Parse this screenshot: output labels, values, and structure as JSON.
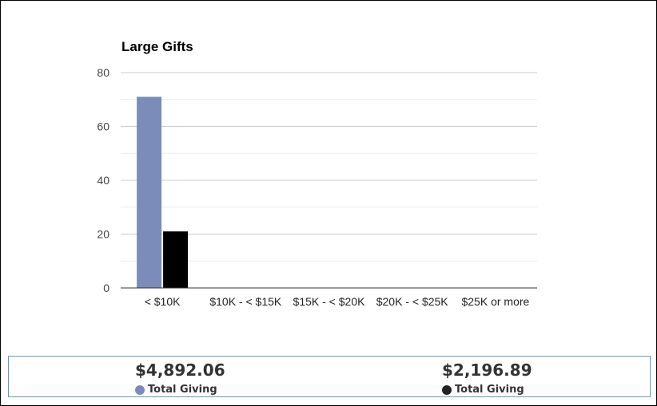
{
  "chart_data": {
    "type": "bar",
    "title": "Large Gifts",
    "categories": [
      "< $10K",
      "$10K - < $15K",
      "$15K - < $20K",
      "$20K - < $25K",
      "$25K or more"
    ],
    "series": [
      {
        "values": [
          71,
          0,
          0,
          0,
          0
        ],
        "color": "#7b8bba"
      },
      {
        "values": [
          21,
          0,
          0,
          0,
          0
        ],
        "color": "#000000"
      }
    ],
    "ylim": [
      0,
      80
    ],
    "y_ticks": [
      0,
      20,
      40,
      60,
      80
    ],
    "grid": true,
    "legend": "none"
  },
  "summary": [
    {
      "amount": "$4,892.06",
      "label": "Total Giving",
      "color": "#7b8bba"
    },
    {
      "amount": "$2,196.89",
      "label": "Total Giving",
      "color": "#222222"
    }
  ]
}
